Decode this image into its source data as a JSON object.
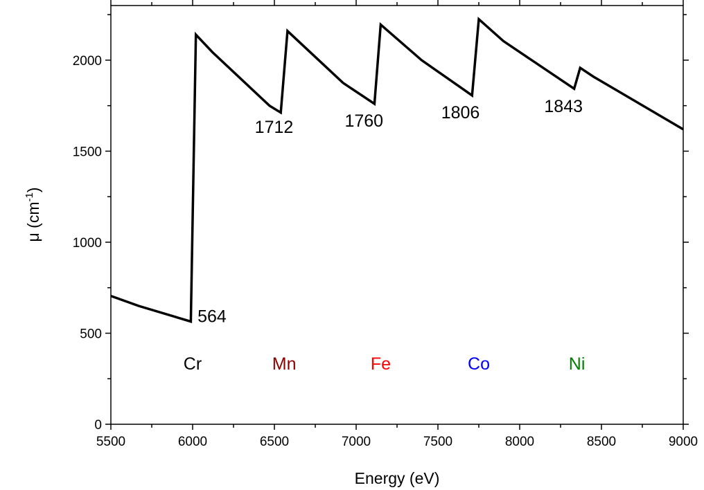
{
  "chart_data": {
    "type": "line",
    "xlabel": "Energy (eV)",
    "ylabel": {
      "base": "μ (cm",
      "sup": "-1",
      "close": ")"
    },
    "xlim": [
      5500,
      9000
    ],
    "ylim": [
      0,
      2300
    ],
    "xticks": [
      5500,
      6000,
      6500,
      7000,
      7500,
      8000,
      8500,
      9000
    ],
    "yticks": [
      0,
      500,
      1000,
      1500,
      2000
    ],
    "grid": false,
    "series": [
      {
        "color": "#000000",
        "points": [
          [
            5500,
            705
          ],
          [
            5670,
            650
          ],
          [
            5989,
            564
          ],
          [
            6020,
            2140
          ],
          [
            6120,
            2045
          ],
          [
            6470,
            1750
          ],
          [
            6539,
            1712
          ],
          [
            6580,
            2160
          ],
          [
            6920,
            1875
          ],
          [
            7112,
            1760
          ],
          [
            7150,
            2195
          ],
          [
            7400,
            2000
          ],
          [
            7709,
            1806
          ],
          [
            7750,
            2225
          ],
          [
            7900,
            2105
          ],
          [
            8333,
            1843
          ],
          [
            8370,
            1958
          ],
          [
            8450,
            1910
          ],
          [
            9000,
            1620
          ]
        ]
      }
    ],
    "annotations": [
      {
        "text": "564",
        "x": 6030,
        "y": 560
      },
      {
        "text": "1712",
        "x": 6380,
        "y": 1600
      },
      {
        "text": "1760",
        "x": 6930,
        "y": 1635
      },
      {
        "text": "1806",
        "x": 7520,
        "y": 1680
      },
      {
        "text": "1843",
        "x": 8150,
        "y": 1715
      }
    ],
    "element_labels": [
      {
        "text": "Cr",
        "x": 6000,
        "y": 300,
        "color": "#000000"
      },
      {
        "text": "Mn",
        "x": 6560,
        "y": 300,
        "color": "#8B0000"
      },
      {
        "text": "Fe",
        "x": 7150,
        "y": 300,
        "color": "#FF0000"
      },
      {
        "text": "Co",
        "x": 7750,
        "y": 300,
        "color": "#0000FF"
      },
      {
        "text": "Ni",
        "x": 8350,
        "y": 300,
        "color": "#008000"
      }
    ]
  }
}
